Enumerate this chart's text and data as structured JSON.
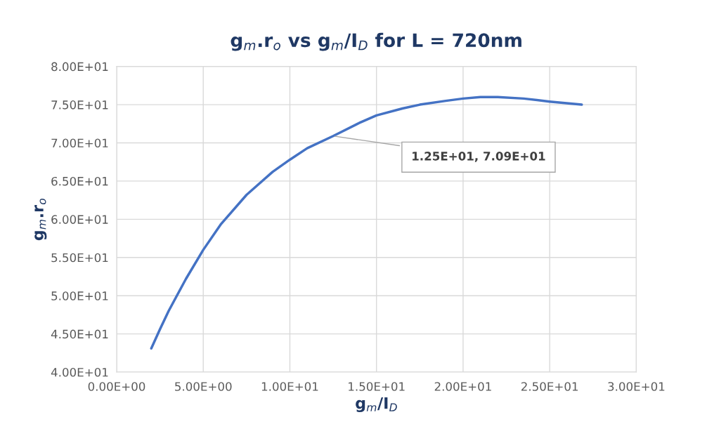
{
  "chart_data": {
    "type": "line",
    "title": "g$_{m}$.r$_{o}$ vs g$_{m}$/I$_{D}$ for L = 720nm",
    "xlabel": "g$_{m}$/I$_{D}$",
    "ylabel": "g$_{m}$.r$_{o}$",
    "series": [
      {
        "color": "#4472c4",
        "x": [
          2.0,
          2.5,
          3.0,
          4.0,
          5.0,
          6.0,
          7.5,
          9.0,
          10.0,
          11.0,
          12.5,
          14.0,
          15.0,
          16.5,
          17.5,
          19.0,
          20.0,
          21.0,
          22.0,
          23.5,
          25.0,
          26.85
        ],
        "values": [
          43.1,
          45.6,
          48.0,
          52.2,
          56.0,
          59.3,
          63.2,
          66.2,
          67.8,
          69.3,
          70.9,
          72.6,
          73.6,
          74.5,
          75.0,
          75.5,
          75.8,
          76.0,
          76.0,
          75.8,
          75.4,
          75.0
        ]
      }
    ],
    "annotations": [
      {
        "text": "1.25E+01, 7.09E+01",
        "x": 12.5,
        "y": 70.9
      }
    ],
    "xlim": [
      0,
      30
    ],
    "xticks": [
      {
        "value": 0,
        "label": "0.00E+00"
      },
      {
        "value": 5,
        "label": "5.00E+00"
      },
      {
        "value": 10,
        "label": "1.00E+01"
      },
      {
        "value": 15,
        "label": "1.50E+01"
      },
      {
        "value": 20,
        "label": "2.00E+01"
      },
      {
        "value": 25,
        "label": "2.50E+01"
      },
      {
        "value": 30,
        "label": "3.00E+01"
      }
    ],
    "ylim": [
      40,
      80
    ],
    "yticks": [
      {
        "value": 40,
        "label": "4.00E+01"
      },
      {
        "value": 45,
        "label": "4.50E+01"
      },
      {
        "value": 50,
        "label": "5.00E+01"
      },
      {
        "value": 55,
        "label": "5.50E+01"
      },
      {
        "value": 60,
        "label": "6.00E+01"
      },
      {
        "value": 65,
        "label": "6.50E+01"
      },
      {
        "value": 70,
        "label": "7.00E+01"
      },
      {
        "value": 75,
        "label": "7.50E+01"
      },
      {
        "value": 80,
        "label": "8.00E+01"
      }
    ],
    "grid": true,
    "marker": "none",
    "line_style": "solid"
  }
}
